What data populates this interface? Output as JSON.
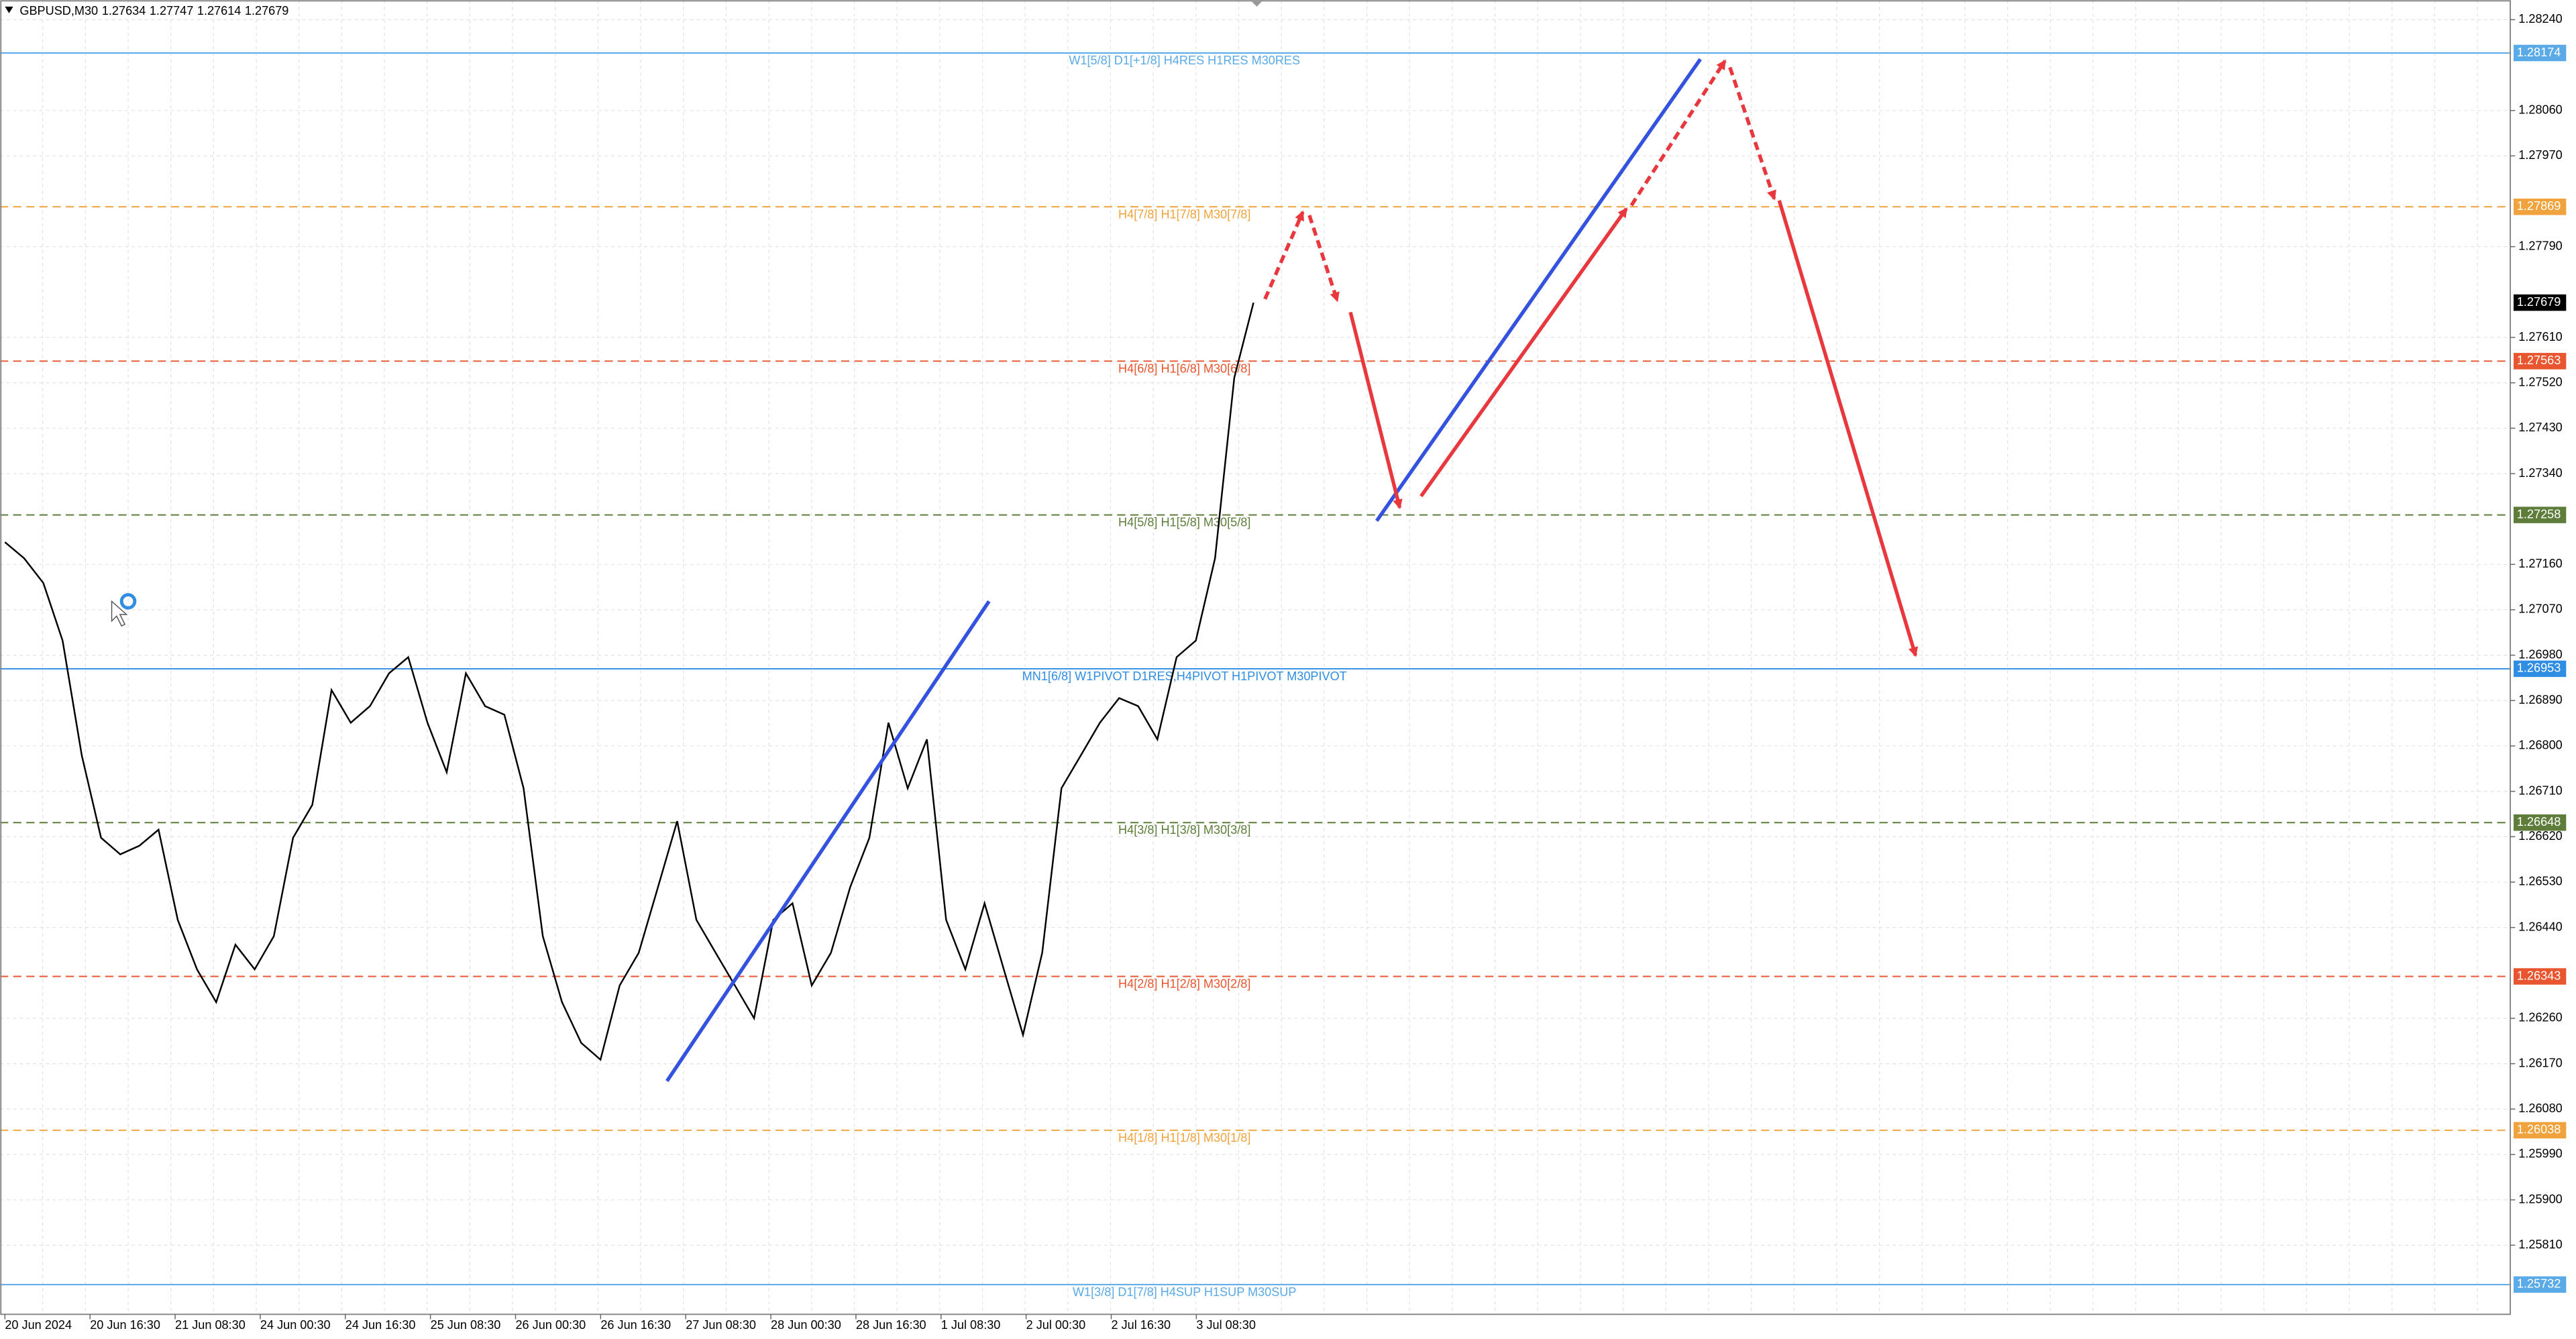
{
  "chart_data": {
    "type": "line",
    "title": "GBPUSD,M30",
    "ohlc": [
      "1.27634",
      "1.27747",
      "1.27614",
      "1.27679"
    ],
    "series": [
      {
        "name": "GBPUSD",
        "color": "#000000",
        "values": [
          1.27204,
          1.27172,
          1.27123,
          1.27009,
          1.26781,
          1.26618,
          1.26585,
          1.26602,
          1.26634,
          1.26455,
          1.26357,
          1.26292,
          1.26406,
          1.26357,
          1.26423,
          1.26618,
          1.26683,
          1.26911,
          1.26846,
          1.26879,
          1.26944,
          1.26976,
          1.26846,
          1.26748,
          1.26944,
          1.26879,
          1.26862,
          1.26716,
          1.26423,
          1.26292,
          1.26211,
          1.26178,
          1.26325,
          1.2639,
          1.2652,
          1.26651,
          1.26455,
          1.2639,
          1.26325,
          1.2626,
          1.26455,
          1.26488,
          1.26325,
          1.2639,
          1.2652,
          1.26618,
          1.26846,
          1.26716,
          1.26813,
          1.26455,
          1.26357,
          1.26488,
          1.26357,
          1.26227,
          1.2639,
          1.26716,
          1.26781,
          1.26846,
          1.26895,
          1.26879,
          1.26813,
          1.26976,
          1.27009,
          1.27172,
          1.2753,
          1.27679
        ]
      }
    ],
    "current_price": {
      "value": 1.27679,
      "label": "1.27679"
    },
    "x_labels": [
      "20 Jun 2024",
      "20 Jun 16:30",
      "21 Jun 08:30",
      "24 Jun 00:30",
      "24 Jun 16:30",
      "25 Jun 08:30",
      "26 Jun 00:30",
      "26 Jun 16:30",
      "27 Jun 08:30",
      "28 Jun 00:30",
      "28 Jun 16:30",
      "1 Jul 08:30",
      "2 Jul 00:30",
      "2 Jul 16:30",
      "3 Jul 08:30"
    ],
    "ylim": [
      1.25673,
      1.28279
    ],
    "yticks": [
      {
        "value": 1.2824,
        "label": "1.28240"
      },
      {
        "value": 1.2806,
        "label": "1.28060"
      },
      {
        "value": 1.2797,
        "label": "1.27970"
      },
      {
        "value": 1.2779,
        "label": "1.27790"
      },
      {
        "value": 1.2761,
        "label": "1.27610"
      },
      {
        "value": 1.2752,
        "label": "1.27520"
      },
      {
        "value": 1.2743,
        "label": "1.27430"
      },
      {
        "value": 1.2734,
        "label": "1.27340"
      },
      {
        "value": 1.2716,
        "label": "1.27160"
      },
      {
        "value": 1.2707,
        "label": "1.27070"
      },
      {
        "value": 1.2698,
        "label": "1.26980"
      },
      {
        "value": 1.2689,
        "label": "1.26890"
      },
      {
        "value": 1.268,
        "label": "1.26800"
      },
      {
        "value": 1.2671,
        "label": "1.26710"
      },
      {
        "value": 1.2662,
        "label": "1.26620"
      },
      {
        "value": 1.2653,
        "label": "1.26530"
      },
      {
        "value": 1.2644,
        "label": "1.26440"
      },
      {
        "value": 1.2626,
        "label": "1.26260"
      },
      {
        "value": 1.2617,
        "label": "1.26170"
      },
      {
        "value": 1.2608,
        "label": "1.26080"
      },
      {
        "value": 1.2599,
        "label": "1.25990"
      },
      {
        "value": 1.259,
        "label": "1.25900"
      },
      {
        "value": 1.2581,
        "label": "1.25810"
      }
    ],
    "grid": true,
    "levels": [
      {
        "label": "W1[5/8] D1[+1/8] H4RES H1RES M30RES",
        "price": {
          "value": 1.28174,
          "label": "1.28174"
        },
        "color": "#5aaae8",
        "dashed": false
      },
      {
        "label": "H4[7/8] H1[7/8] M30[7/8]",
        "price": {
          "value": 1.27869,
          "label": "1.27869"
        },
        "color": "#f0a33c",
        "dashed": true
      },
      {
        "label": "H4[6/8] H1[6/8] M30[6/8]",
        "price": {
          "value": 1.27563,
          "label": "1.27563"
        },
        "color": "#e8552e",
        "dashed": true
      },
      {
        "label": "H4[5/8] H1[5/8] M30[5/8]",
        "price": {
          "value": 1.27258,
          "label": "1.27258"
        },
        "color": "#5e7d3a",
        "dashed": true
      },
      {
        "label": "MN1[6/8] W1PIVOT D1RES,H4PIVOT H1PIVOT M30PIVOT",
        "price": {
          "value": 1.26953,
          "label": "1.26953"
        },
        "color": "#2f8de4",
        "dashed": false
      },
      {
        "label": "H4[3/8] H1[3/8] M30[3/8]",
        "price": {
          "value": 1.26648,
          "label": "1.26648"
        },
        "color": "#5e7d3a",
        "dashed": true
      },
      {
        "label": "H4[2/8] H1[2/8] M30[2/8]",
        "price": {
          "value": 1.26343,
          "label": "1.26343"
        },
        "color": "#e8552e",
        "dashed": true
      },
      {
        "label": "H4[1/8] H1[1/8] M30[1/8]",
        "price": {
          "value": 1.26038,
          "label": "1.26038"
        },
        "color": "#f0a33c",
        "dashed": true
      },
      {
        "label": "W1[3/8] D1[7/8] H4SUP H1SUP M30SUP",
        "price": {
          "value": 1.25732,
          "label": "1.25732"
        },
        "color": "#5aaae8",
        "dashed": false
      }
    ]
  }
}
